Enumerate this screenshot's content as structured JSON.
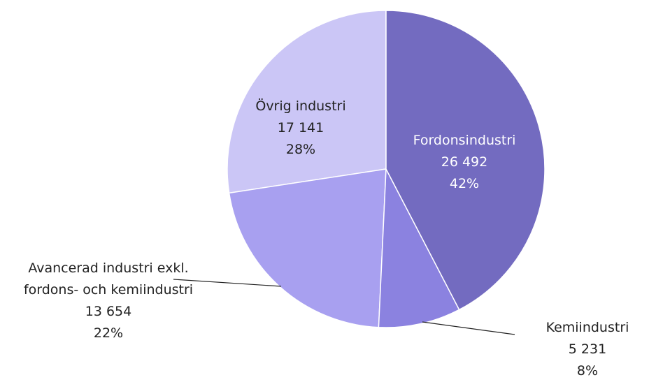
{
  "chart_data": {
    "type": "pie",
    "categories": [
      "Fordonsindustri",
      "Kemiindustri",
      "Avancerad industri exkl. fordons- och kemiindustri",
      "Övrig industri"
    ],
    "values": [
      26492,
      5231,
      13654,
      17141
    ],
    "value_labels": [
      "26 492",
      "5 231",
      "13 654",
      "17 141"
    ],
    "percentages": [
      42,
      8,
      22,
      28
    ],
    "percentage_labels": [
      "42%",
      "8%",
      "22%",
      "28%"
    ],
    "colors": [
      "#736bc0",
      "#8b82e0",
      "#a8a0f0",
      "#cbc6f6"
    ]
  }
}
